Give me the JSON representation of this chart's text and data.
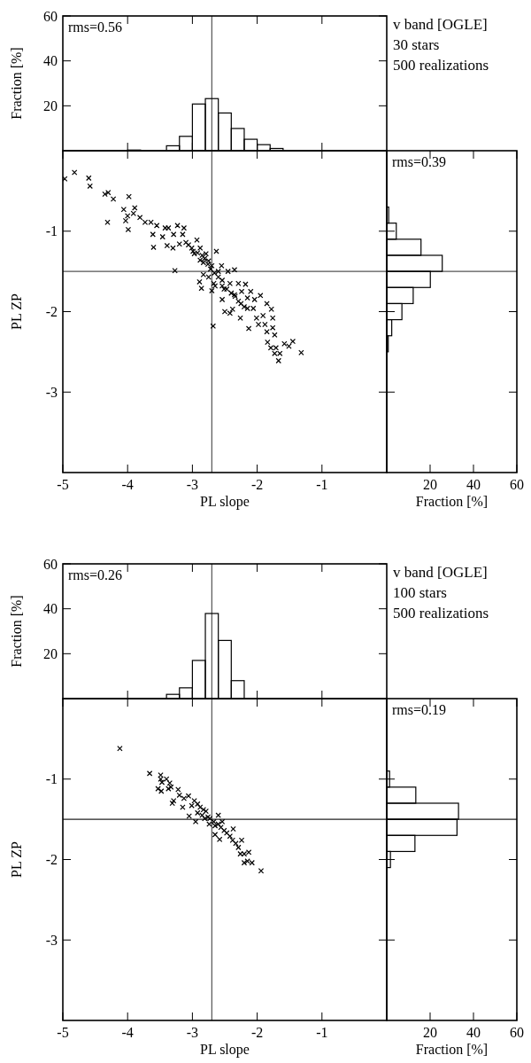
{
  "chart_data": [
    {
      "type": "histogram",
      "ylabel": "Fraction [%]",
      "bins": [
        -4.0,
        -3.8,
        -3.6,
        -3.4,
        -3.2,
        -3.0,
        -2.8,
        -2.6,
        -2.4,
        -2.2,
        -2.0,
        -1.8,
        -1.6
      ],
      "values": [
        0.3,
        0,
        0,
        2.2,
        6.4,
        20.8,
        23.2,
        16.8,
        9.9,
        5.1,
        2.7,
        1.0
      ],
      "color": "#000000",
      "xlim": [
        -5,
        0
      ],
      "ylim": [
        0,
        60
      ],
      "xticks": [
        -4,
        -3,
        -2,
        -1
      ],
      "yticks": [
        20,
        40,
        60
      ],
      "tick_labels": "y",
      "annotations": [
        "rms=0.56"
      ],
      "ref_lines": [
        {
          "axis": "x",
          "value": -2.7,
          "color": "#555555"
        }
      ]
    },
    {
      "type": "scatter",
      "xlabel": "PL slope",
      "ylabel": "PL ZP",
      "marker": "cross",
      "color": "#000000",
      "xlim": [
        -5,
        0
      ],
      "ylim": [
        -4,
        0
      ],
      "xticks": [
        -5,
        -4,
        -3,
        -2,
        -1
      ],
      "yticks": [
        -3,
        -2,
        -1
      ],
      "x": [
        -4.97,
        -4.82,
        -4.6,
        -4.58,
        -4.35,
        -4.3,
        -4.22,
        -3.98,
        -4.06,
        -4.31,
        -4.03,
        -4.0,
        -3.99,
        -3.89,
        -3.91,
        -3.81,
        -3.73,
        -3.64,
        -3.61,
        -3.6,
        -3.55,
        -3.42,
        -3.37,
        -3.46,
        -3.39,
        -3.3,
        -3.27,
        -3.23,
        -3.15,
        -3.13,
        -3.29,
        -3.2,
        -3.1,
        -3.01,
        -2.93,
        -2.97,
        -2.88,
        -2.88,
        -2.79,
        -2.83,
        -2.75,
        -2.7,
        -2.63,
        -2.89,
        -2.86,
        -2.83,
        -2.75,
        -2.67,
        -2.68,
        -2.6,
        -2.55,
        -2.54,
        -2.51,
        -2.54,
        -2.45,
        -2.42,
        -2.35,
        -2.35,
        -2.29,
        -2.24,
        -2.18,
        -2.15,
        -2.1,
        -2.06,
        -2.2,
        -2.29,
        -2.38,
        -2.5,
        -2.42,
        -2.26,
        -2.13,
        -2.04,
        -1.95,
        -2.01,
        -1.98,
        -1.91,
        -1.85,
        -1.78,
        -1.76,
        -1.88,
        -1.85,
        -1.76,
        -1.73,
        -1.84,
        -1.79,
        -1.71,
        -1.73,
        -1.65,
        -1.67,
        -1.58,
        -1.51,
        -1.45,
        -1.32,
        -3.06,
        -2.99,
        -2.92,
        -2.85,
        -2.81,
        -2.76,
        -2.72,
        -2.66,
        -2.6,
        -2.54,
        -2.47,
        -2.4,
        -2.34,
        -2.25,
        -2.15,
        -2.65,
        -2.7
      ],
      "values": [
        -0.35,
        -0.27,
        -0.34,
        -0.44,
        -0.54,
        -0.52,
        -0.6,
        -0.57,
        -0.73,
        -0.89,
        -0.87,
        -0.81,
        -0.98,
        -0.71,
        -0.78,
        -0.83,
        -0.89,
        -0.89,
        -1.04,
        -1.2,
        -0.93,
        -0.96,
        -0.96,
        -1.07,
        -1.18,
        -1.21,
        -1.49,
        -0.93,
        -1.04,
        -0.96,
        -1.04,
        -1.16,
        -1.14,
        -1.21,
        -1.11,
        -1.28,
        -1.21,
        -1.36,
        -1.28,
        -1.39,
        -1.37,
        -1.43,
        -1.25,
        -1.63,
        -1.71,
        -1.54,
        -1.57,
        -1.65,
        -2.18,
        -1.5,
        -1.43,
        -1.61,
        -1.72,
        -1.85,
        -1.5,
        -1.65,
        -1.48,
        -1.79,
        -1.65,
        -1.75,
        -1.66,
        -1.83,
        -1.75,
        -1.96,
        -1.94,
        -1.87,
        -1.97,
        -2.0,
        -2.02,
        -2.08,
        -2.21,
        -1.85,
        -1.8,
        -2.08,
        -2.16,
        -2.05,
        -1.9,
        -1.97,
        -2.08,
        -2.16,
        -2.25,
        -2.2,
        -2.29,
        -2.38,
        -2.45,
        -2.45,
        -2.52,
        -2.52,
        -2.61,
        -2.4,
        -2.43,
        -2.37,
        -2.51,
        -1.17,
        -1.25,
        -1.27,
        -1.3,
        -1.34,
        -1.41,
        -1.47,
        -1.52,
        -1.57,
        -1.68,
        -1.72,
        -1.77,
        -1.81,
        -1.9,
        -1.96,
        -1.68,
        -1.74
      ],
      "ref_lines": [
        {
          "axis": "x",
          "value": -2.7,
          "color": "#555555"
        },
        {
          "axis": "y",
          "value": -1.5,
          "color": "#555555"
        }
      ]
    },
    {
      "type": "histogram",
      "orientation": "horizontal",
      "xlabel": "Fraction [%]",
      "bins": [
        -2.5,
        -2.3,
        -2.1,
        -1.9,
        -1.7,
        -1.5,
        -1.3,
        -1.1,
        -0.9,
        -0.7
      ],
      "values": [
        0.7,
        2.3,
        7.0,
        12.2,
        20.1,
        25.6,
        15.8,
        4.4,
        0.9
      ],
      "color": "#000000",
      "xlim": [
        0,
        60
      ],
      "ylim": [
        -4,
        0
      ],
      "xticks": [
        20,
        40,
        60
      ],
      "yticks": [
        -3,
        -2,
        -1
      ],
      "tick_labels": "x",
      "annotations": [
        "rms=0.39"
      ],
      "ref_lines": [
        {
          "axis": "y",
          "value": -1.5,
          "color": "#555555"
        }
      ]
    },
    {
      "type": "other",
      "annotations": [
        "v band [OGLE]",
        "30 stars",
        "500 realizations"
      ]
    },
    {
      "type": "histogram",
      "ylabel": "Fraction [%]",
      "bins": [
        -3.4,
        -3.2,
        -3.0,
        -2.8,
        -2.6,
        -2.4,
        -2.2
      ],
      "values": [
        1.9,
        4.8,
        17.0,
        37.9,
        25.9,
        8.0
      ],
      "color": "#000000",
      "xlim": [
        -5,
        0
      ],
      "ylim": [
        0,
        60
      ],
      "xticks": [
        -4,
        -3,
        -2,
        -1
      ],
      "yticks": [
        20,
        40,
        60
      ],
      "tick_labels": "y",
      "annotations": [
        "rms=0.26"
      ],
      "ref_lines": [
        {
          "axis": "x",
          "value": -2.7,
          "color": "#555555"
        }
      ]
    },
    {
      "type": "scatter",
      "xlabel": "PL slope",
      "ylabel": "PL ZP",
      "marker": "cross",
      "color": "#000000",
      "xlim": [
        -5,
        0
      ],
      "ylim": [
        -4,
        0
      ],
      "xticks": [
        -5,
        -4,
        -3,
        -2,
        -1
      ],
      "yticks": [
        -3,
        -2,
        -1
      ],
      "x": [
        -4.12,
        -3.66,
        -3.49,
        -3.49,
        -3.47,
        -3.53,
        -3.48,
        -3.4,
        -3.35,
        -3.33,
        -3.37,
        -3.22,
        -3.2,
        -3.13,
        -3.06,
        -3.29,
        -3.31,
        -3.15,
        -3.05,
        -2.95,
        -2.97,
        -2.92,
        -2.88,
        -2.83,
        -2.79,
        -2.92,
        -2.85,
        -2.76,
        -2.73,
        -2.67,
        -2.65,
        -2.6,
        -2.56,
        -2.51,
        -2.65,
        -2.58,
        -2.47,
        -2.42,
        -2.37,
        -2.38,
        -2.33,
        -2.24,
        -2.29,
        -2.26,
        -2.2,
        -2.13,
        -2.2,
        -2.15,
        -2.08,
        -1.94,
        -2.6,
        -2.54,
        -2.74,
        -2.81,
        -3.01
      ],
      "values": [
        -0.62,
        -0.93,
        -0.95,
        -1.0,
        -1.04,
        -1.12,
        -1.15,
        -1.0,
        -1.05,
        -1.1,
        -1.12,
        -1.13,
        -1.2,
        -1.24,
        -1.21,
        -1.27,
        -1.3,
        -1.35,
        -1.46,
        -1.53,
        -1.27,
        -1.31,
        -1.35,
        -1.38,
        -1.4,
        -1.42,
        -1.45,
        -1.47,
        -1.49,
        -1.53,
        -1.58,
        -1.56,
        -1.6,
        -1.64,
        -1.69,
        -1.75,
        -1.67,
        -1.71,
        -1.62,
        -1.76,
        -1.8,
        -1.76,
        -1.85,
        -1.93,
        -1.93,
        -1.91,
        -2.04,
        -2.02,
        -2.04,
        -2.14,
        -1.45,
        -1.53,
        -1.56,
        -1.49,
        -1.33
      ],
      "ref_lines": [
        {
          "axis": "x",
          "value": -2.7,
          "color": "#555555"
        },
        {
          "axis": "y",
          "value": -1.5,
          "color": "#222222"
        }
      ]
    },
    {
      "type": "histogram",
      "orientation": "horizontal",
      "xlabel": "Fraction [%]",
      "bins": [
        -2.1,
        -1.9,
        -1.7,
        -1.5,
        -1.3,
        -1.1,
        -0.9
      ],
      "values": [
        1.7,
        13.0,
        32.4,
        33.1,
        13.4,
        1.3
      ],
      "color": "#000000",
      "xlim": [
        0,
        60
      ],
      "ylim": [
        -4,
        0
      ],
      "xticks": [
        20,
        40,
        60
      ],
      "yticks": [
        -3,
        -2,
        -1
      ],
      "tick_labels": "x",
      "annotations": [
        "rms=0.19"
      ],
      "ref_lines": [
        {
          "axis": "y",
          "value": -1.5,
          "color": "#222222"
        }
      ]
    },
    {
      "type": "other",
      "annotations": [
        "v band [OGLE]",
        "100 stars",
        "500 realizations"
      ]
    }
  ]
}
